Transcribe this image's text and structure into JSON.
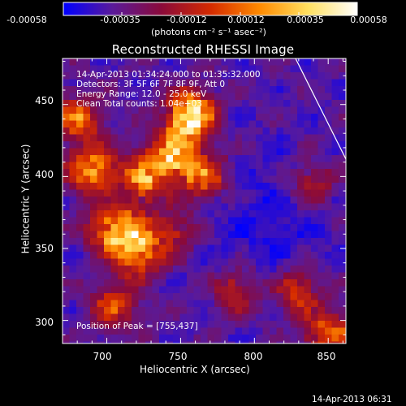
{
  "chart_data": {
    "type": "heatmap",
    "title": "Reconstructed RHESSI Image",
    "xlabel": "Heliocentric X (arcsec)",
    "ylabel": "Heliocentric Y (arcsec)",
    "xlim": [
      670,
      862
    ],
    "ylim": [
      284,
      482
    ],
    "x_ticks": [
      "700",
      "750",
      "800",
      "850"
    ],
    "y_ticks": [
      "300",
      "350",
      "400",
      "450"
    ],
    "colorbar": {
      "ticks": [
        "-0.00058",
        "-0.00035",
        "-0.00012",
        "0.00012",
        "0.00035",
        "0.00058"
      ],
      "range": [
        -0.00058,
        0.00058
      ],
      "unit_label": "(photons cm⁻² s⁻¹ asec⁻²)",
      "colors": [
        "#0000ff",
        "#5a1a9a",
        "#8a0a3a",
        "#d42a00",
        "#ff8a00",
        "#ffe060",
        "#ffffff"
      ]
    },
    "annotations": {
      "time_range": "14-Apr-2013 01:34:24.000 to 01:35:32.000",
      "detectors": "Detectors: 3F 5F 6F 7F 8F 9F, Att 0",
      "energy": "Energy Range: 12.0 - 25.0 keV",
      "clean": "Clean   Total counts: 1.04e+03",
      "peak": "Position of Peak = [755,437]"
    },
    "peak_position": [
      755,
      437
    ],
    "bright_sources": [
      {
        "x": 757,
        "y": 442,
        "level": 1.0
      },
      {
        "x": 745,
        "y": 415,
        "level": 0.75
      },
      {
        "x": 690,
        "y": 405,
        "level": 0.65
      },
      {
        "x": 725,
        "y": 398,
        "level": 0.6
      },
      {
        "x": 680,
        "y": 440,
        "level": 0.55
      },
      {
        "x": 765,
        "y": 400,
        "level": 0.55
      },
      {
        "x": 715,
        "y": 360,
        "level": 0.6
      },
      {
        "x": 720,
        "y": 345,
        "level": 0.5
      },
      {
        "x": 700,
        "y": 365,
        "level": 0.45
      },
      {
        "x": 705,
        "y": 310,
        "level": 0.45
      },
      {
        "x": 745,
        "y": 360,
        "level": 0.35
      },
      {
        "x": 830,
        "y": 320,
        "level": 0.4
      },
      {
        "x": 850,
        "y": 290,
        "level": 0.55
      },
      {
        "x": 788,
        "y": 320,
        "level": 0.35
      },
      {
        "x": 840,
        "y": 395,
        "level": 0.3
      }
    ]
  },
  "timestamp": "14-Apr-2013 06:31"
}
